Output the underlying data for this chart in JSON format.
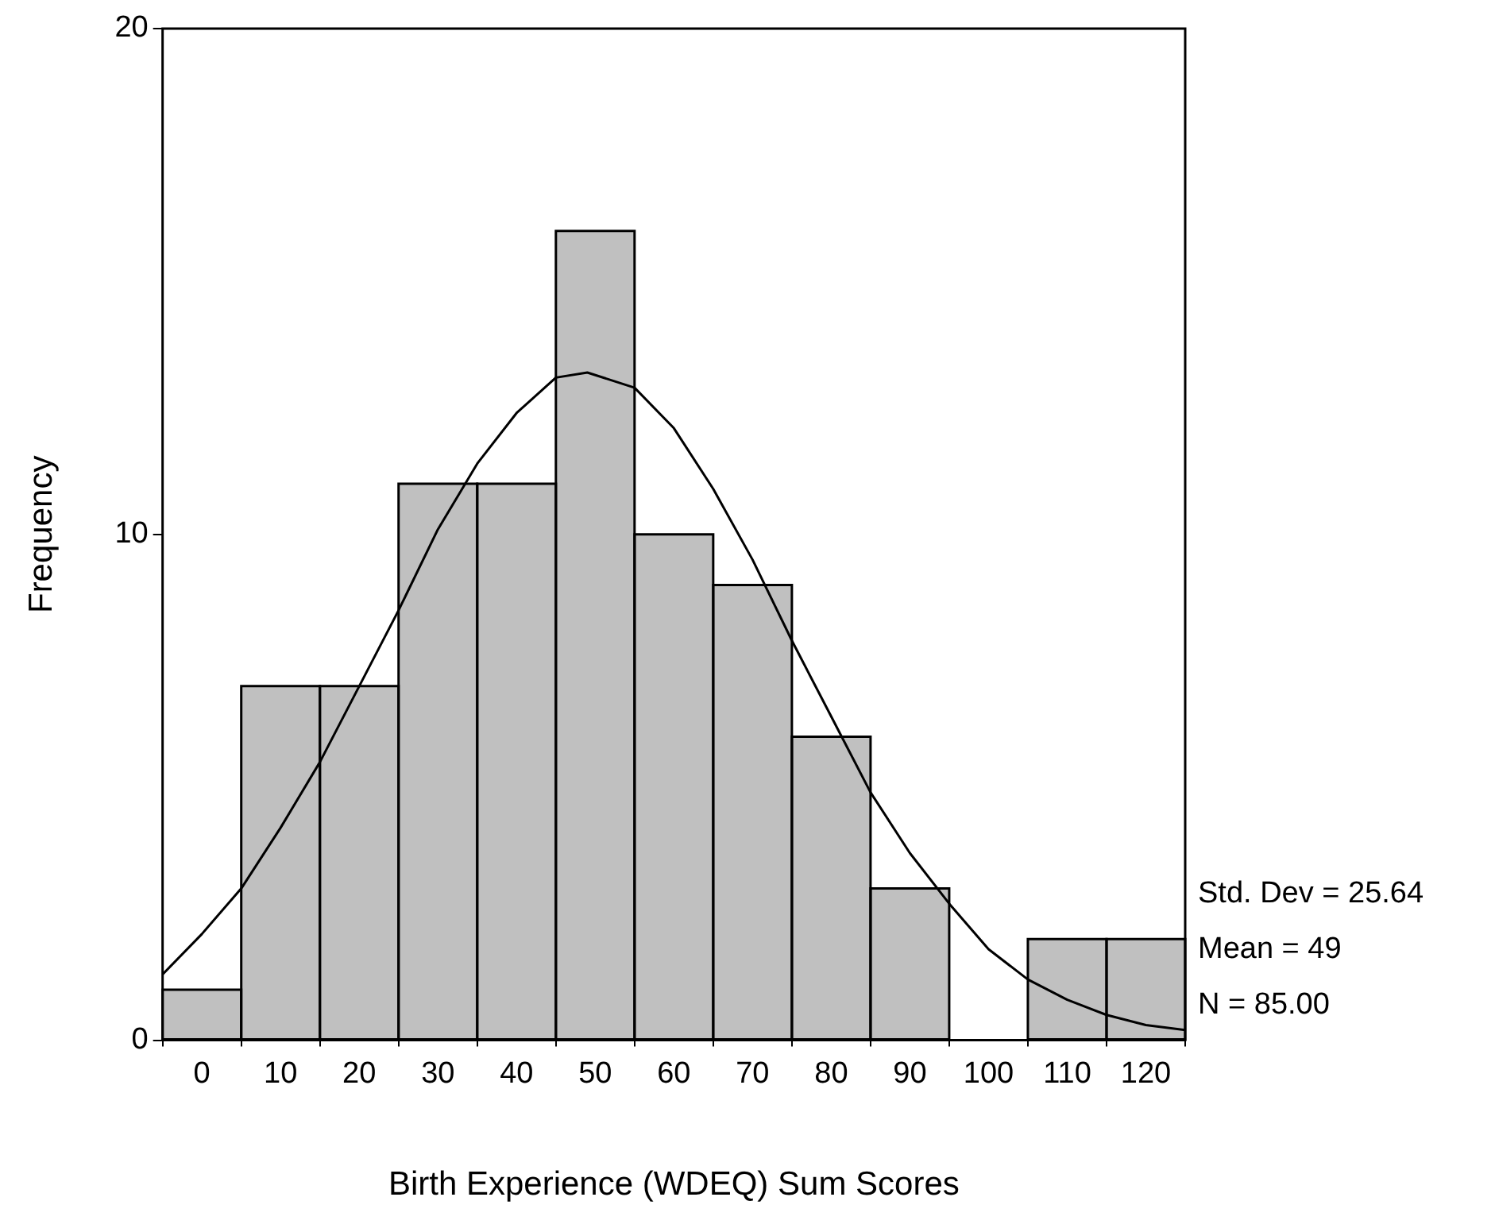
{
  "chart_data": {
    "type": "histogram",
    "xlabel": "Birth Experience (WDEQ) Sum Scores",
    "ylabel": "Frequency",
    "bins": [
      -5,
      5,
      15,
      25,
      35,
      45,
      55,
      65,
      75,
      85,
      95,
      105,
      115,
      125
    ],
    "series": [
      {
        "color": "#c0c0c0",
        "values": [
          1,
          7,
          7,
          11,
          11,
          16,
          10,
          9,
          6,
          3,
          0,
          2,
          2
        ]
      },
      {
        "type": "line",
        "color": "#000000",
        "x": [
          -5,
          0,
          5,
          10,
          15,
          20,
          25,
          30,
          35,
          40,
          45,
          49,
          55,
          60,
          65,
          70,
          75,
          80,
          85,
          90,
          95,
          100,
          105,
          110,
          115,
          120,
          125
        ],
        "values": [
          1.3,
          2.1,
          3.0,
          4.2,
          5.5,
          7.0,
          8.5,
          10.1,
          11.4,
          12.4,
          13.1,
          13.2,
          12.9,
          12.1,
          10.9,
          9.5,
          7.9,
          6.4,
          4.9,
          3.7,
          2.7,
          1.8,
          1.2,
          0.8,
          0.5,
          0.3,
          0.2
        ]
      }
    ],
    "xlim": [
      -5,
      125
    ],
    "xticks": [
      0,
      10,
      20,
      30,
      40,
      50,
      60,
      70,
      80,
      90,
      100,
      110,
      120
    ],
    "ylim": [
      0,
      20
    ],
    "yticks": [
      0,
      10,
      20
    ],
    "grid": false,
    "legend": false,
    "marker": "none",
    "annotations": [
      "Std. Dev = 25.64",
      "Mean = 49",
      "N = 85.00"
    ]
  }
}
